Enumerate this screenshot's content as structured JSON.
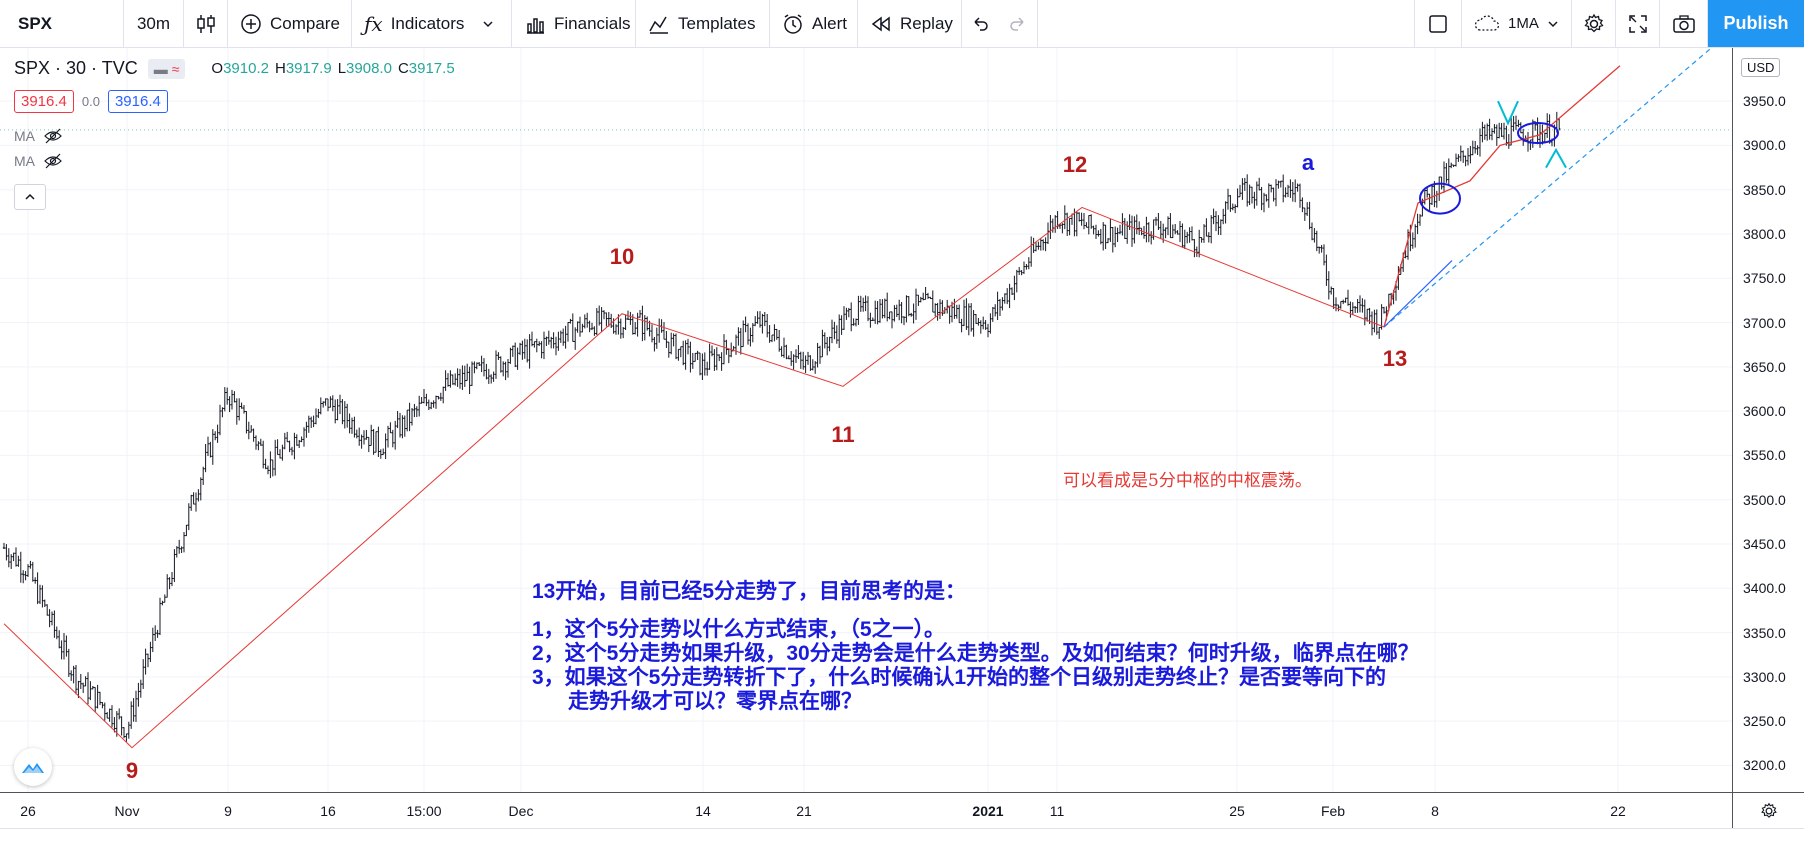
{
  "toolbar": {
    "symbol": "SPX",
    "interval": "30m",
    "compare": "Compare",
    "indicators": "Indicators",
    "financials": "Financials",
    "templates": "Templates",
    "alert": "Alert",
    "replay": "Replay",
    "layout_name": "1MA",
    "publish": "Publish"
  },
  "legend": {
    "title": "SPX · 30 · TVC",
    "ohlc": {
      "o_label": "O",
      "o": "3910.2",
      "h_label": "H",
      "h": "3917.9",
      "l_label": "L",
      "l": "3908.0",
      "c_label": "C",
      "c": "3917.5"
    },
    "bid": "3916.4",
    "spread": "0.0",
    "ask": "3916.4",
    "indicators": [
      {
        "label": "MA"
      },
      {
        "label": "MA"
      }
    ]
  },
  "price_axis": {
    "currency": "USD",
    "ticks": [
      "3950.0",
      "3900.0",
      "3850.0",
      "3800.0",
      "3750.0",
      "3700.0",
      "3650.0",
      "3600.0",
      "3550.0",
      "3500.0",
      "3450.0",
      "3400.0",
      "3350.0",
      "3300.0",
      "3250.0",
      "3200.0"
    ]
  },
  "time_axis": {
    "labels": [
      "26",
      "Nov",
      "9",
      "16",
      "15:00",
      "Dec",
      "14",
      "21",
      "2021",
      "11",
      "25",
      "Feb",
      "8",
      "22"
    ]
  },
  "annotations": {
    "waves": [
      "9",
      "10",
      "11",
      "12",
      "a",
      "13"
    ],
    "note_red": "可以看成是5分中枢的中枢震荡。",
    "note_blue": [
      "13开始，目前已经5分走势了，目前思考的是：",
      "",
      "1，这个5分走势以什么方式结束，（5之一）。",
      "2，这个5分走势如果升级，30分走势会是什么走势类型。及如何结束？何时升级，临界点在哪？",
      "3，如果这个5分走势转折下了，什么时候确认1开始的整个日级别走势终止？是否要等向下的",
      "走势升级才可以？零界点在哪？"
    ]
  },
  "chart_data": {
    "type": "line",
    "title": "SPX · 30 · TVC",
    "ylim": [
      3170,
      4010
    ],
    "price_scale": "linear",
    "series": [
      {
        "name": "SPX",
        "x": [
          "Oct 22",
          "Oct 26",
          "Oct 28",
          "Oct 30",
          "Nov 3",
          "Nov 5",
          "Nov 9",
          "Nov 11",
          "Nov 16",
          "Nov 20",
          "Nov 25",
          "Dec 1",
          "Dec 4",
          "Dec 9",
          "Dec 14",
          "Dec 17",
          "Dec 21",
          "Dec 24",
          "Dec 29",
          "Jan 4",
          "Jan 8",
          "Jan 11",
          "Jan 15",
          "Jan 19",
          "Jan 22",
          "Jan 26",
          "Jan 29",
          "Feb 1",
          "Feb 4",
          "Feb 8",
          "Feb 11",
          "Feb 12"
        ],
        "values": [
          3450,
          3420,
          3300,
          3240,
          3330,
          3490,
          3620,
          3540,
          3610,
          3560,
          3625,
          3665,
          3700,
          3700,
          3650,
          3700,
          3650,
          3710,
          3720,
          3700,
          3820,
          3800,
          3810,
          3790,
          3845,
          3850,
          3730,
          3700,
          3830,
          3910,
          3915,
          3917.5
        ]
      }
    ],
    "wave_structure": [
      {
        "label": "9",
        "date": "Oct 30",
        "price": 3220
      },
      {
        "label": "10",
        "date": "Dec 9",
        "price": 3710
      },
      {
        "label": "11",
        "date": "Dec 21",
        "price": 3628
      },
      {
        "label": "12",
        "date": "Jan 8",
        "price": 3830
      },
      {
        "label": "13",
        "date": "Jan 29",
        "price": 3695
      }
    ]
  }
}
